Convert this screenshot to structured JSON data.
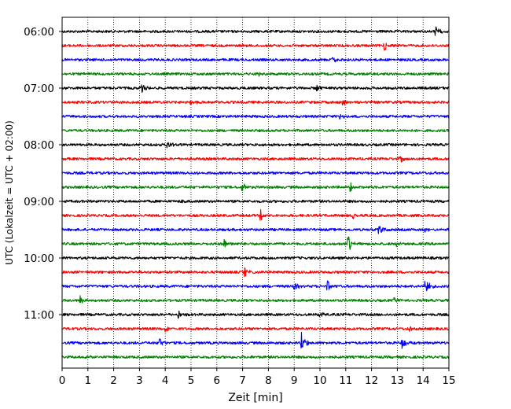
{
  "chart_data": {
    "type": "line",
    "title": "",
    "xlabel": "Zeit  [min]",
    "ylabel": "UTC (Lokalzeit = UTC + 02:00)",
    "xlim": [
      0,
      15
    ],
    "x_ticks": [
      "0",
      "1",
      "2",
      "3",
      "4",
      "5",
      "6",
      "7",
      "8",
      "9",
      "10",
      "11",
      "12",
      "13",
      "14",
      "15"
    ],
    "y_tick_labels": [
      "06:00",
      "07:00",
      "08:00",
      "09:00",
      "10:00",
      "11:00"
    ],
    "grid": "vertical dotted at each minute",
    "trace_interval_minutes": 15,
    "colors_cycle": [
      "#000000",
      "#ff0000",
      "#0000ff",
      "#008000"
    ],
    "traces": [
      {
        "start": "06:00",
        "color": "#000000",
        "events": [
          {
            "t": 14.5,
            "amp": 0.5
          }
        ]
      },
      {
        "start": "06:15",
        "color": "#ff0000",
        "events": [
          {
            "t": 12.5,
            "amp": 0.6
          }
        ]
      },
      {
        "start": "06:30",
        "color": "#0000ff",
        "events": [
          {
            "t": 10.5,
            "amp": 0.4
          }
        ]
      },
      {
        "start": "06:45",
        "color": "#008000",
        "events": [
          {
            "t": 7.6,
            "amp": 0.3
          }
        ]
      },
      {
        "start": "07:00",
        "color": "#000000",
        "events": [
          {
            "t": 3.1,
            "amp": 0.5
          },
          {
            "t": 9.9,
            "amp": 0.4
          }
        ]
      },
      {
        "start": "07:15",
        "color": "#ff0000",
        "events": [
          {
            "t": 5.0,
            "amp": 0.3
          },
          {
            "t": 10.9,
            "amp": 0.4
          }
        ]
      },
      {
        "start": "07:30",
        "color": "#0000ff",
        "events": [
          {
            "t": 10.8,
            "amp": 0.4
          }
        ]
      },
      {
        "start": "07:45",
        "color": "#008000",
        "events": []
      },
      {
        "start": "08:00",
        "color": "#000000",
        "events": [
          {
            "t": 4.1,
            "amp": 0.5
          }
        ]
      },
      {
        "start": "08:15",
        "color": "#ff0000",
        "events": [
          {
            "t": 13.1,
            "amp": 0.5
          }
        ]
      },
      {
        "start": "08:30",
        "color": "#0000ff",
        "events": [
          {
            "t": 5.3,
            "amp": 0.4
          }
        ]
      },
      {
        "start": "08:45",
        "color": "#008000",
        "events": [
          {
            "t": 7.0,
            "amp": 0.5
          },
          {
            "t": 11.2,
            "amp": 0.5
          }
        ]
      },
      {
        "start": "09:00",
        "color": "#000000",
        "events": [
          {
            "t": 4.6,
            "amp": 0.3
          }
        ]
      },
      {
        "start": "09:15",
        "color": "#ff0000",
        "events": [
          {
            "t": 7.7,
            "amp": 0.6
          },
          {
            "t": 11.3,
            "amp": 0.6
          }
        ]
      },
      {
        "start": "09:30",
        "color": "#0000ff",
        "events": [
          {
            "t": 12.3,
            "amp": 0.6
          },
          {
            "t": 14.1,
            "amp": 0.3
          }
        ]
      },
      {
        "start": "09:45",
        "color": "#008000",
        "events": [
          {
            "t": 6.3,
            "amp": 0.5
          },
          {
            "t": 11.1,
            "amp": 1.0
          },
          {
            "t": 13.0,
            "amp": 0.3
          }
        ]
      },
      {
        "start": "10:00",
        "color": "#000000",
        "events": []
      },
      {
        "start": "10:15",
        "color": "#ff0000",
        "events": [
          {
            "t": 7.1,
            "amp": 0.5
          }
        ]
      },
      {
        "start": "10:30",
        "color": "#0000ff",
        "events": [
          {
            "t": 9.0,
            "amp": 0.6
          },
          {
            "t": 10.3,
            "amp": 0.6
          },
          {
            "t": 14.1,
            "amp": 1.1
          }
        ]
      },
      {
        "start": "10:45",
        "color": "#008000",
        "events": [
          {
            "t": 0.7,
            "amp": 0.6
          },
          {
            "t": 12.9,
            "amp": 0.4
          }
        ]
      },
      {
        "start": "11:00",
        "color": "#000000",
        "events": [
          {
            "t": 4.5,
            "amp": 0.5
          },
          {
            "t": 10.0,
            "amp": 0.4
          }
        ]
      },
      {
        "start": "11:15",
        "color": "#ff0000",
        "events": [
          {
            "t": 4.0,
            "amp": 0.4
          },
          {
            "t": 13.5,
            "amp": 0.4
          }
        ]
      },
      {
        "start": "11:30",
        "color": "#0000ff",
        "events": [
          {
            "t": 3.8,
            "amp": 0.7
          },
          {
            "t": 9.3,
            "amp": 1.2
          },
          {
            "t": 13.2,
            "amp": 0.8
          }
        ]
      },
      {
        "start": "11:45",
        "color": "#008000",
        "events": [
          {
            "t": 0.9,
            "amp": 0.3
          }
        ]
      }
    ]
  }
}
